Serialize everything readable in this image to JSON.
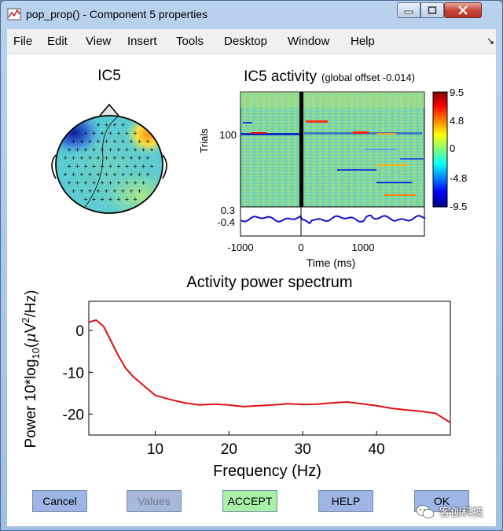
{
  "window": {
    "title": "pop_prop() - Component 5 properties"
  },
  "menu": [
    "File",
    "Edit",
    "View",
    "Insert",
    "Tools",
    "Desktop",
    "Window",
    "Help"
  ],
  "topo": {
    "title": "IC5"
  },
  "erp_image": {
    "title": "IC5 activity",
    "subtitle": "(global offset -0.014)",
    "ylabel": "Trials",
    "ytick": "100",
    "xlabel": "Time (ms)",
    "xticks": [
      "-1000",
      "0",
      "1000"
    ],
    "erp_ticks": [
      "0.3",
      "-0.4"
    ],
    "colorbar_ticks": [
      "9.5",
      "4.8",
      "0",
      "-4.8",
      "-9.5"
    ]
  },
  "chart_data": {
    "type": "line",
    "title": "Activity power spectrum",
    "xlabel": "Frequency (Hz)",
    "ylabel": "Power 10*log10(μV²/Hz)",
    "ylabel_parts": [
      "Power 10*log",
      "10",
      "(",
      "μ",
      "V",
      "2",
      "/Hz)"
    ],
    "xlim": [
      1,
      50
    ],
    "ylim": [
      -25,
      7
    ],
    "x_tick_labels": [
      "10",
      "20",
      "30",
      "40"
    ],
    "x_ticks": [
      10,
      20,
      30,
      40
    ],
    "y_tick_labels": [
      "0",
      "-10",
      "-20"
    ],
    "y_ticks": [
      0,
      -10,
      -20
    ],
    "series": [
      {
        "name": "spectrum",
        "color": "#e01010",
        "x": [
          1,
          2,
          3,
          4,
          5,
          6,
          7,
          8,
          9,
          10,
          12,
          14,
          16,
          18,
          20,
          22,
          24,
          26,
          28,
          30,
          32,
          34,
          36,
          38,
          40,
          42,
          44,
          46,
          48,
          50
        ],
        "y": [
          2,
          2.5,
          1,
          -2.5,
          -6,
          -9,
          -11,
          -12.5,
          -14,
          -15.5,
          -16.5,
          -17.3,
          -17.8,
          -17.6,
          -17.8,
          -18.2,
          -18,
          -17.8,
          -17.5,
          -17.7,
          -17.6,
          -17.3,
          -17.1,
          -17.5,
          -18,
          -18.6,
          -19,
          -19.3,
          -19.8,
          -22
        ]
      }
    ]
  },
  "buttons": {
    "cancel": "Cancel",
    "values": "Values",
    "accept": "ACCEPT",
    "help": "HELP",
    "ok": "OK"
  },
  "watermark": "客创科技",
  "colors": {
    "spectrum": "#e01010",
    "erp_trace": "#1010d0",
    "accept_btn": "#a9f0a9",
    "blue_btn": "#9db6e6"
  }
}
